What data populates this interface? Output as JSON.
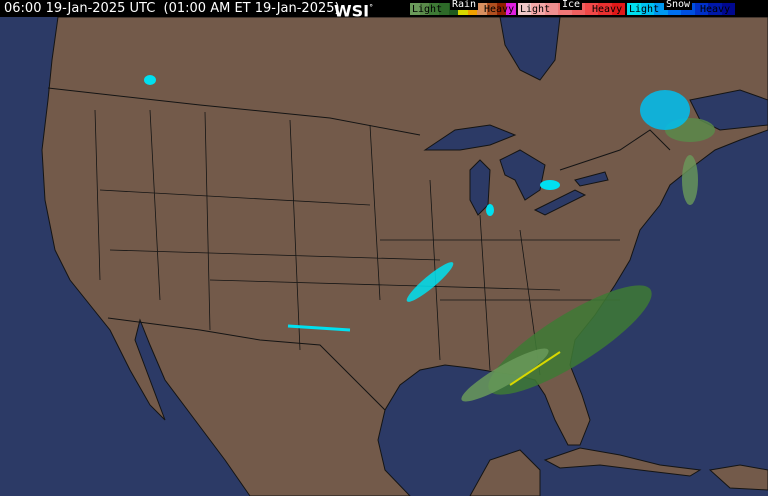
{
  "header": {
    "timestamp": "06:00 19-Jan-2025 UTC  (01:00 AM ET 19-Jan-2025)",
    "logo": "WSI",
    "logo_mark": "°"
  },
  "legend": {
    "rain": {
      "title": "Rain",
      "light": "Light",
      "heavy": "Heavy",
      "colors": [
        "#6a9a5a",
        "#5a8a4a",
        "#3e7a35",
        "#2d6a28",
        "#1e5a1e",
        "#d8d800",
        "#f0a000",
        "#d89060",
        "#b05020",
        "#902000",
        "#e020e0"
      ]
    },
    "ice": {
      "title": "Ice",
      "light": "Light",
      "heavy": "Heavy",
      "colors": [
        "#f0c8c8",
        "#f4a8a8",
        "#f09090",
        "#f07878",
        "#f06060",
        "#f04848",
        "#e83030",
        "#e01818"
      ]
    },
    "snow": {
      "title": "Snow",
      "light": "Light",
      "heavy": "Heavy",
      "colors": [
        "#00e0f0",
        "#00c0f0",
        "#0098f0",
        "#0070f0",
        "#0050e0",
        "#0030c8",
        "#0018a8",
        "#000890"
      ]
    }
  },
  "map": {
    "ocean_color": "#2c3a66",
    "land_color": "#735a4a",
    "border_color": "#141414"
  }
}
